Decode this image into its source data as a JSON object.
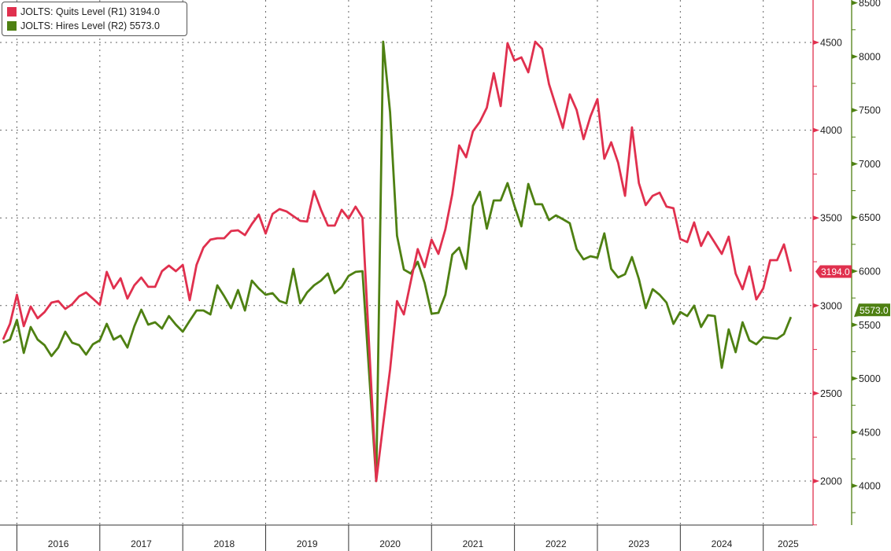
{
  "legend": [
    {
      "label": "JOLTS: Quits Level (R1)",
      "last": "3194.0",
      "color": "#e0304e"
    },
    {
      "label": "JOLTS: Hires Level (R2)",
      "last": "5573.0",
      "color": "#4e8012"
    }
  ],
  "chart_data": {
    "type": "line",
    "title": "",
    "start_month": "2015-10",
    "end_month": "2025-04",
    "x_tick_labels": [
      "2016",
      "2017",
      "2018",
      "2019",
      "2020",
      "2021",
      "2022",
      "2023",
      "2024",
      "2025"
    ],
    "grid": true,
    "legend_position": "top-left",
    "axes": [
      {
        "name": "R1",
        "side": "right",
        "color": "#e0304e",
        "ylim": [
          1749,
          4742
        ],
        "ticks": [
          2000,
          2500,
          3000,
          3500,
          4000,
          4500
        ],
        "tick_labels": [
          "2000",
          "2500",
          "3000",
          "3500",
          "4000",
          "4500"
        ]
      },
      {
        "name": "R2",
        "side": "right",
        "color": "#4e8012",
        "ylim": [
          3634,
          8527
        ],
        "ticks": [
          4000,
          4500,
          5000,
          5500,
          6000,
          6500,
          7000,
          7500,
          8000,
          8500
        ],
        "tick_labels": [
          "4000",
          "4500",
          "5000",
          "5500",
          "6000",
          "6500",
          "7000",
          "7500",
          "8000",
          "8500"
        ]
      }
    ],
    "series": [
      {
        "name": "JOLTS: Quits Level (R1)",
        "axis": "R1",
        "color": "#e0304e",
        "last_label": "3194.0",
        "values": [
          2807,
          2896,
          3062,
          2883,
          2995,
          2928,
          2963,
          3017,
          3026,
          2981,
          3008,
          3053,
          3075,
          3040,
          3004,
          3192,
          3098,
          3156,
          3040,
          3116,
          3160,
          3107,
          3107,
          3196,
          3228,
          3196,
          3232,
          3031,
          3232,
          3331,
          3376,
          3384,
          3384,
          3425,
          3429,
          3402,
          3465,
          3519,
          3411,
          3523,
          3550,
          3537,
          3510,
          3483,
          3479,
          3653,
          3546,
          3456,
          3456,
          3546,
          3496,
          3564,
          3501,
          2753,
          2000,
          2323,
          2636,
          3026,
          2950,
          3138,
          3322,
          3219,
          3376,
          3295,
          3434,
          3635,
          3913,
          3846,
          3994,
          4048,
          4128,
          4325,
          4137,
          4496,
          4397,
          4415,
          4330,
          4504,
          4464,
          4263,
          4137,
          4012,
          4204,
          4115,
          3949,
          4079,
          4177,
          3837,
          3931,
          3815,
          3626,
          4016,
          3698,
          3573,
          3626,
          3644,
          3564,
          3555,
          3380,
          3362,
          3474,
          3340,
          3420,
          3358,
          3295,
          3393,
          3183,
          3093,
          3223,
          3035,
          3098,
          3259,
          3259,
          3349,
          3194
        ]
      },
      {
        "name": "JOLTS: Hires Level (R2)",
        "axis": "R2",
        "color": "#4e8012",
        "last_label": "5573.0",
        "values": [
          5333,
          5363,
          5546,
          5238,
          5480,
          5363,
          5311,
          5209,
          5289,
          5436,
          5333,
          5311,
          5223,
          5319,
          5355,
          5509,
          5363,
          5399,
          5289,
          5487,
          5641,
          5502,
          5524,
          5465,
          5582,
          5502,
          5436,
          5538,
          5634,
          5634,
          5597,
          5868,
          5766,
          5656,
          5824,
          5634,
          5912,
          5839,
          5780,
          5795,
          5722,
          5700,
          6022,
          5700,
          5802,
          5868,
          5912,
          5978,
          5795,
          5853,
          5956,
          5993,
          6000,
          5026,
          4044,
          8139,
          7480,
          6330,
          6015,
          5978,
          6088,
          5890,
          5604,
          5612,
          5780,
          6154,
          6220,
          6022,
          6608,
          6740,
          6396,
          6659,
          6659,
          6821,
          6608,
          6418,
          6813,
          6623,
          6623,
          6476,
          6520,
          6484,
          6447,
          6205,
          6110,
          6139,
          6125,
          6352,
          6022,
          5941,
          5971,
          6132,
          5927,
          5656,
          5832,
          5780,
          5707,
          5509,
          5619,
          5582,
          5678,
          5480,
          5590,
          5582,
          5099,
          5458,
          5245,
          5524,
          5355,
          5319,
          5385,
          5377,
          5370,
          5414,
          5573
        ]
      }
    ]
  }
}
